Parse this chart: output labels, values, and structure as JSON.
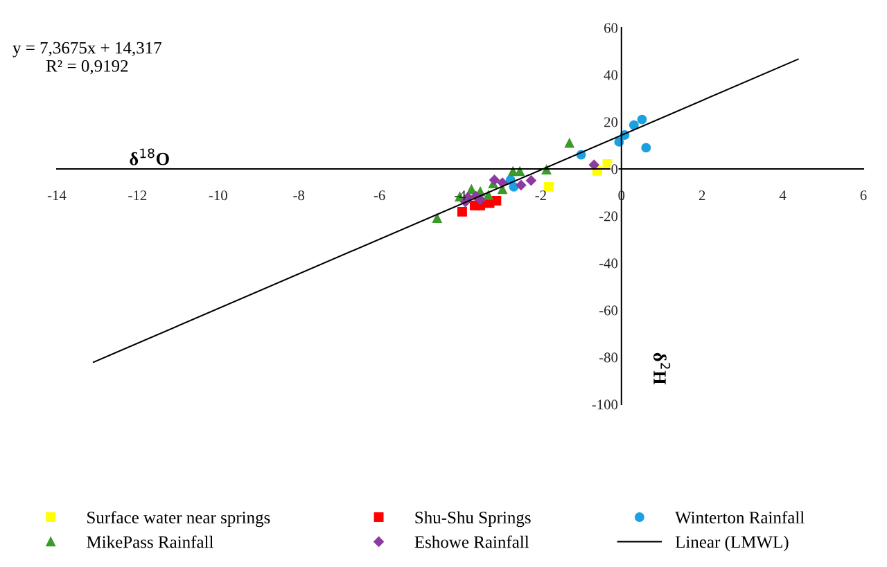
{
  "chart_data": {
    "type": "scatter",
    "xlabel": "δ$^{18}$O",
    "ylabel": "δ$^{2}$H",
    "xlim": [
      -14,
      6
    ],
    "ylim": [
      -100,
      60
    ],
    "xticks": [
      -14,
      -12,
      -10,
      -8,
      -6,
      -4,
      -2,
      0,
      2,
      4,
      6
    ],
    "yticks": [
      -100,
      -80,
      -60,
      -40,
      -20,
      0,
      20,
      40,
      60
    ],
    "grid": false,
    "legend": "bottom",
    "annotations": [
      "y = 7,3675x + 14,317\nR² = 0,9192"
    ],
    "series": [
      {
        "name": "Surface water near springs",
        "color": "#ffff00",
        "marker": "square",
        "x": [
          -0.35,
          -0.6,
          -1.8
        ],
        "values": [
          2.1,
          -0.8,
          -7.6
        ]
      },
      {
        "name": "Shu-Shu Springs",
        "color": "#ff0000",
        "marker": "square",
        "x": [
          -3.95,
          -3.64,
          -3.5,
          -3.27,
          -3.1
        ],
        "values": [
          -18.2,
          -15.5,
          -15.5,
          -14.5,
          -13.5
        ]
      },
      {
        "name": "Winterton Rainfall",
        "color": "#1ba1e2",
        "marker": "circle",
        "x": [
          0.51,
          0.31,
          0.08,
          -0.06,
          0.61,
          -1.0,
          -2.75,
          -2.67
        ],
        "values": [
          21,
          18.6,
          14.4,
          11.5,
          9,
          6,
          -4.7,
          -7.6
        ]
      },
      {
        "name": "MikePass Rainfall",
        "color": "#3a9a2a",
        "marker": "triangle",
        "x": [
          -1.29,
          -4.57,
          -2.69,
          -2.52,
          -1.86,
          -4.01,
          -3.72,
          -3.58,
          -3.5,
          -3.3,
          -2.95,
          -3.18
        ],
        "values": [
          11,
          -20.9,
          -1,
          -1,
          -0.3,
          -11.8,
          -8.6,
          null,
          -9.6,
          -11.1,
          -8.6,
          -6.2
        ]
      },
      {
        "name": "Eshowe Rainfall",
        "color": "#8e3ba0",
        "marker": "diamond",
        "x": [
          -0.68,
          -2.24,
          -2.49,
          -3.15,
          -2.95,
          -3.81,
          -3.61,
          -3.5,
          -3.87
        ],
        "values": [
          1.7,
          -4.9,
          -6.9,
          -4.7,
          -5.9,
          -12.1,
          -11.6,
          -13,
          -14
        ]
      },
      {
        "name": "Linear (LMWL)",
        "type": "line",
        "color": "#000000",
        "marker": "none",
        "line_style": "solid",
        "x": [
          -13.09,
          4.38
        ],
        "values": [
          -82.1,
          46.6
        ]
      }
    ]
  }
}
